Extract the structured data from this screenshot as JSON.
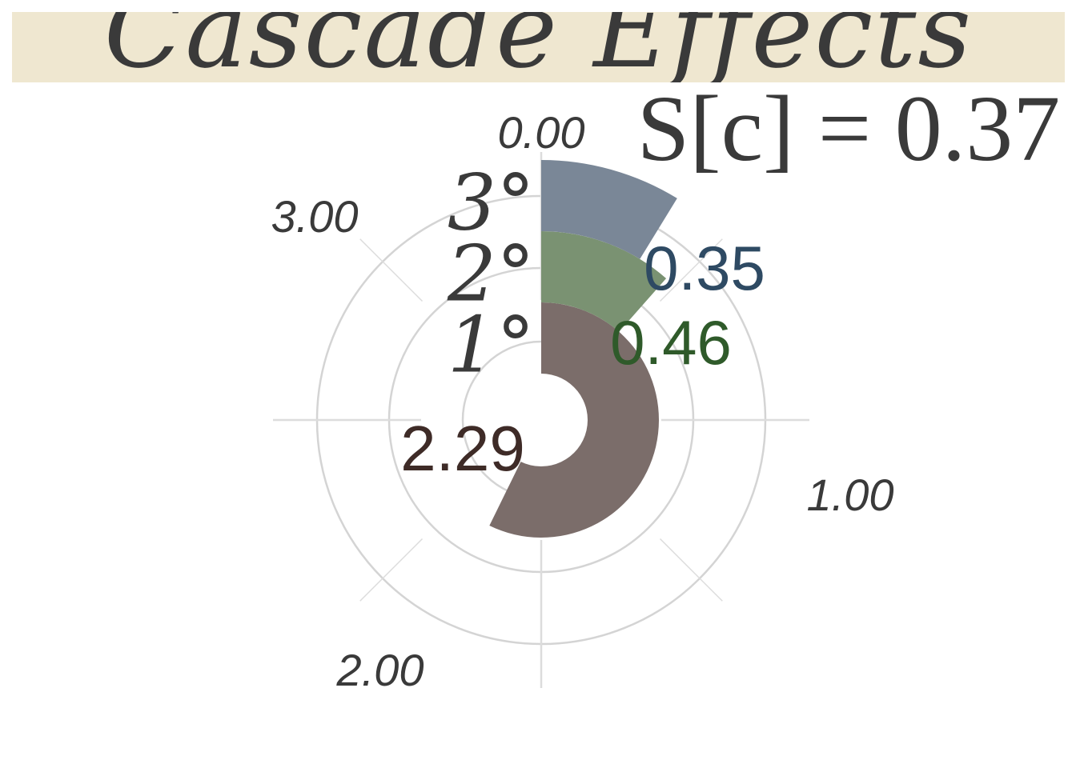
{
  "title": "Cascade Effects",
  "annotation": "S[c] = 0.37",
  "chart_data": {
    "type": "radial_bar",
    "title": "Cascade Effects",
    "annotation": "S[c] = 0.37",
    "rings": [
      {
        "label": "1°",
        "value": 2.29,
        "value_label": "2.29",
        "color": "#7b6d6a",
        "label_color": "#3e2b27"
      },
      {
        "label": "2°",
        "value": 0.46,
        "value_label": "0.46",
        "color": "#7a9272",
        "label_color": "#2f5a2a"
      },
      {
        "label": "3°",
        "value": 0.35,
        "value_label": "0.35",
        "color": "#7a8797",
        "label_color": "#2e4a63"
      }
    ],
    "angular_axis": {
      "max": 4,
      "direction": "clockwise",
      "start": "top",
      "ticks": [
        0.0,
        1.0,
        2.0,
        3.0
      ],
      "tick_labels": [
        "0.00",
        "1.00",
        "2.00",
        "3.00"
      ]
    },
    "grid": true
  }
}
